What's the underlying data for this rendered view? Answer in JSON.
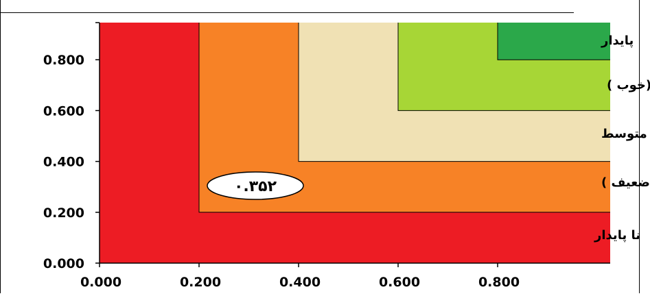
{
  "chart_data": {
    "type": "area",
    "title": "",
    "xlabel": "",
    "ylabel": "",
    "xlim": [
      0,
      1.0
    ],
    "ylim": [
      0,
      0.95
    ],
    "x_ticks": [
      0.0,
      0.2,
      0.4,
      0.6,
      0.8
    ],
    "y_ticks": [
      0.0,
      0.2,
      0.4,
      0.6,
      0.8
    ],
    "x_tick_labels": [
      "0.000",
      "0.200",
      "0.400",
      "0.600",
      "0.800"
    ],
    "y_tick_labels": [
      "0.000",
      "0.200",
      "0.400",
      "0.600",
      "0.800"
    ],
    "grid": false,
    "zones": [
      {
        "label": "نا پایدار",
        "color": "#ed1c24",
        "x_min": 0.0,
        "y_min": 0.0
      },
      {
        "label": "ناپایداری بالقوه (ضعیف )",
        "color": "#f78226",
        "x_min": 0.2,
        "y_min": 0.2
      },
      {
        "label": "متوسط",
        "color": "#f0e1b4",
        "x_min": 0.4,
        "y_min": 0.4
      },
      {
        "label": "پایداری بالقوه (خوب )",
        "color": "#a7d636",
        "x_min": 0.6,
        "y_min": 0.6
      },
      {
        "label": "پایدار",
        "color": "#2ba84a",
        "x_min": 0.8,
        "y_min": 0.8
      }
    ],
    "annotation": {
      "text": "۰.۳۵۲",
      "value": 0.352
    }
  }
}
